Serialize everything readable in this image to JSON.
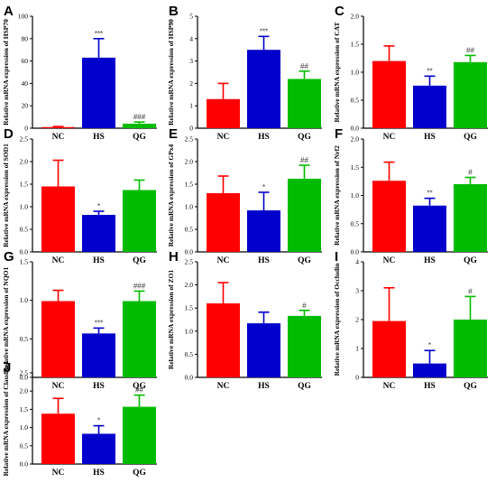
{
  "colors": {
    "NC": "#ff0000",
    "HS": "#0000cc",
    "QG": "#00bb00"
  },
  "chart_data": [
    {
      "panel": "A",
      "type": "bar",
      "categories": [
        "NC",
        "HS",
        "QG"
      ],
      "ylabel": "Relative mRNA expression of HSP70",
      "ylim": [
        0,
        100
      ],
      "yticks": [
        "0",
        "20",
        "40",
        "60",
        "80",
        "100"
      ],
      "values": [
        1.0,
        63,
        4.0
      ],
      "errors": [
        0.5,
        17,
        1.5
      ],
      "annotations": [
        "",
        "***",
        "###"
      ]
    },
    {
      "panel": "B",
      "type": "bar",
      "categories": [
        "NC",
        "HS",
        "QG"
      ],
      "ylabel": "Relative mRNA expression of HSP90",
      "ylim": [
        0,
        5
      ],
      "yticks": [
        "0",
        "1",
        "2",
        "3",
        "4",
        "5"
      ],
      "values": [
        1.3,
        3.5,
        2.2
      ],
      "errors": [
        0.7,
        0.6,
        0.35
      ],
      "annotations": [
        "",
        "***",
        "##"
      ]
    },
    {
      "panel": "C",
      "type": "bar",
      "categories": [
        "NC",
        "HS",
        "QG"
      ],
      "ylabel": "Relative mRNA expression of CAT",
      "ylim": [
        0,
        2.0
      ],
      "yticks": [
        "0.0",
        "0.5",
        "1.0",
        "1.5",
        "2.0"
      ],
      "values": [
        1.2,
        0.76,
        1.18
      ],
      "errors": [
        0.27,
        0.17,
        0.12
      ],
      "annotations": [
        "",
        "**",
        "##"
      ]
    },
    {
      "panel": "D",
      "type": "bar",
      "categories": [
        "NC",
        "HS",
        "QG"
      ],
      "ylabel": "Relative mRNA expression of SOD1",
      "ylim": [
        0,
        2.5
      ],
      "yticks": [
        "0.0",
        "0.5",
        "1.0",
        "1.5",
        "2.0",
        "2.5"
      ],
      "values": [
        1.45,
        0.82,
        1.37
      ],
      "errors": [
        0.58,
        0.08,
        0.22
      ],
      "annotations": [
        "",
        "*",
        ""
      ]
    },
    {
      "panel": "E",
      "type": "bar",
      "categories": [
        "NC",
        "HS",
        "QG"
      ],
      "ylabel": "Relative mRNA expression of GPx4",
      "ylim": [
        0,
        2.5
      ],
      "yticks": [
        "0.0",
        "0.5",
        "1.0",
        "1.5",
        "2.0",
        "2.5"
      ],
      "values": [
        1.3,
        0.92,
        1.62
      ],
      "errors": [
        0.38,
        0.4,
        0.3
      ],
      "annotations": [
        "",
        "*",
        "##"
      ]
    },
    {
      "panel": "F",
      "type": "bar",
      "categories": [
        "NC",
        "HS",
        "QG"
      ],
      "ylabel": "Relative mRNA expression of Nrf2",
      "ylim": [
        0,
        2.0
      ],
      "yticks": [
        "0.0",
        "0.5",
        "1.0",
        "1.5",
        "2.0"
      ],
      "values": [
        1.26,
        0.82,
        1.2
      ],
      "errors": [
        0.33,
        0.13,
        0.12
      ],
      "annotations": [
        "",
        "**",
        "#"
      ]
    },
    {
      "panel": "G",
      "type": "bar",
      "categories": [
        "NC",
        "HS",
        "QG"
      ],
      "ylabel": "Relative mRNA expression of NQO1",
      "ylim": [
        0,
        1.5
      ],
      "yticks": [
        "0.0",
        "0.5",
        "1.0",
        "1.5"
      ],
      "values": [
        0.99,
        0.57,
        0.99
      ],
      "errors": [
        0.14,
        0.07,
        0.13
      ],
      "annotations": [
        "",
        "***",
        "###"
      ]
    },
    {
      "panel": "H",
      "type": "bar",
      "categories": [
        "NC",
        "HS",
        "QG"
      ],
      "ylabel": "Relative mRNA expression of ZO1",
      "ylim": [
        0,
        2.5
      ],
      "yticks": [
        "0.0",
        "0.5",
        "1.0",
        "1.5",
        "2.0",
        "2.5"
      ],
      "values": [
        1.6,
        1.17,
        1.33
      ],
      "errors": [
        0.45,
        0.24,
        0.12
      ],
      "annotations": [
        "",
        "",
        "#"
      ]
    },
    {
      "panel": "I",
      "type": "bar",
      "categories": [
        "NC",
        "HS",
        "QG"
      ],
      "ylabel": "Relative mRNA expression of Occludin",
      "ylim": [
        0,
        4
      ],
      "yticks": [
        "0",
        "1",
        "2",
        "3",
        "4"
      ],
      "values": [
        1.95,
        0.48,
        2.0
      ],
      "errors": [
        1.15,
        0.45,
        0.8
      ],
      "annotations": [
        "",
        "*",
        "#"
      ]
    },
    {
      "panel": "J",
      "type": "bar",
      "categories": [
        "NC",
        "HS",
        "QG"
      ],
      "ylabel": "Relative mRNA expression of Claudin-1",
      "ylim": [
        0,
        2.5
      ],
      "yticks": [
        "0.0",
        "0.5",
        "1.0",
        "1.5",
        "2.0",
        "2.5"
      ],
      "values": [
        1.38,
        0.83,
        1.57
      ],
      "errors": [
        0.42,
        0.22,
        0.32
      ],
      "annotations": [
        "",
        "*",
        "##"
      ]
    }
  ]
}
